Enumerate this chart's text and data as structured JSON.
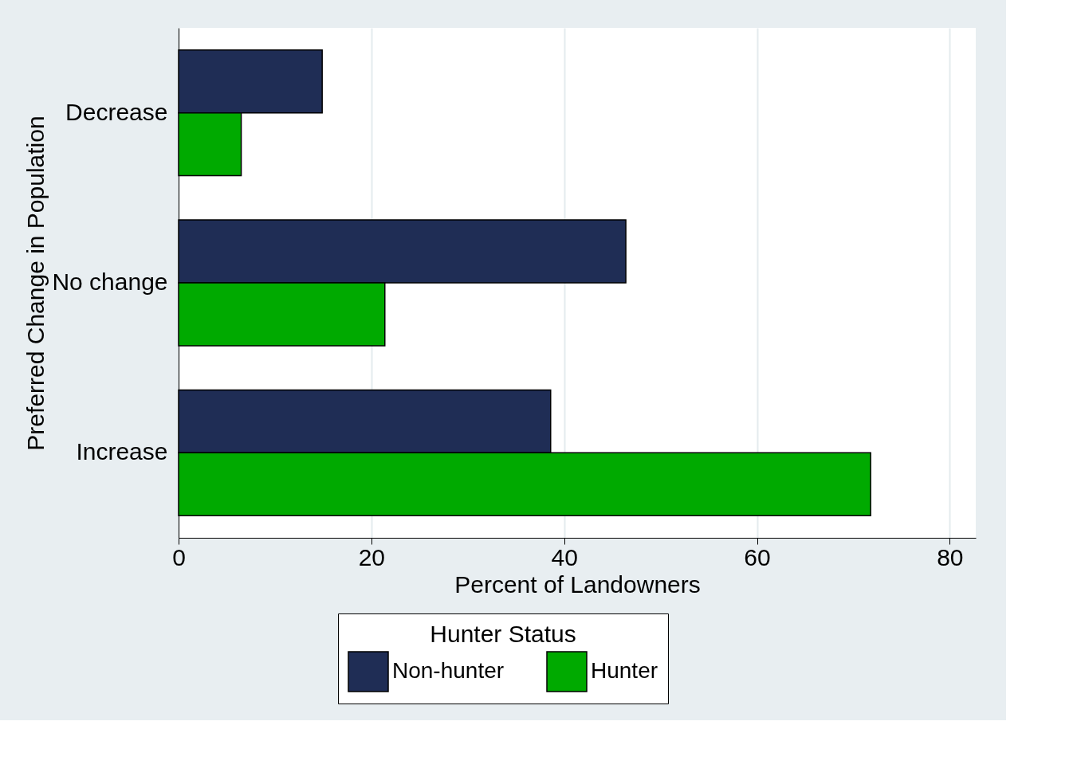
{
  "chart_data": {
    "type": "bar",
    "orientation": "horizontal",
    "xlabel": "Percent of Landowners",
    "ylabel": "Preferred Change in Population",
    "legend_title": "Hunter Status",
    "categories": [
      "Decrease",
      "No change",
      "Increase"
    ],
    "series": [
      {
        "name": "Non-hunter",
        "color": "#1f2d55",
        "values": [
          14.9,
          46.4,
          38.6
        ]
      },
      {
        "name": "Hunter",
        "color": "#00aa00",
        "values": [
          6.5,
          21.4,
          71.8
        ]
      }
    ],
    "xlim": [
      0,
      82.7
    ],
    "xticks": [
      0,
      20,
      40,
      60,
      80
    ],
    "grid": "x",
    "legend": "bottom"
  }
}
